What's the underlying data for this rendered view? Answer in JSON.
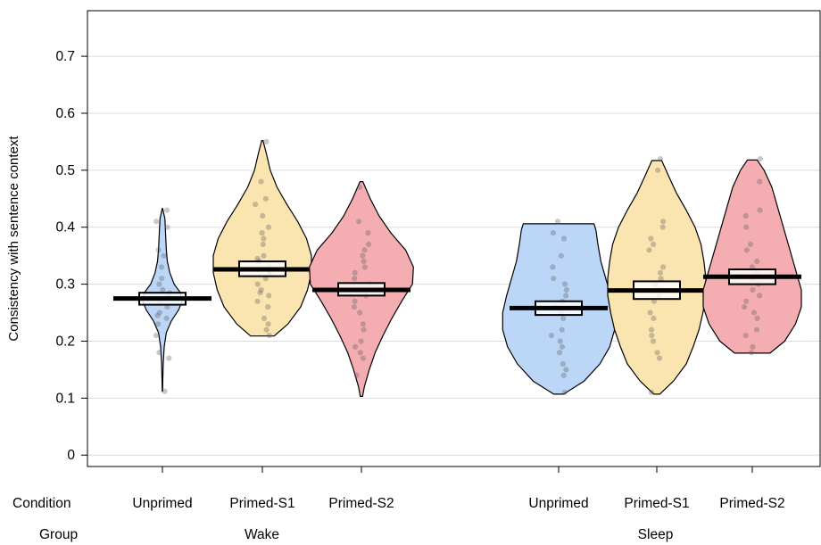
{
  "chart_data": {
    "type": "violin",
    "ylabel": "Consistency with sentence context",
    "ylim": [
      -0.02,
      0.78
    ],
    "yticks": [
      "0",
      "0.1",
      "0.2",
      "0.3",
      "0.4",
      "0.5",
      "0.6",
      "0.7"
    ],
    "ytick_values": [
      0,
      0.1,
      0.2,
      0.3,
      0.4,
      0.5,
      0.6,
      0.7
    ],
    "grid": true,
    "row_labels": {
      "condition": "Condition",
      "group": "Group"
    },
    "groups": [
      {
        "name": "Wake",
        "conditions": [
          {
            "name": "Unprimed",
            "color": "#bcd6f7",
            "mean": 0.275,
            "ci": [
              0.264,
              0.285
            ],
            "min": 0.112,
            "max": 0.433,
            "profile": [
              [
                0.112,
                0.002
              ],
              [
                0.13,
                0.004
              ],
              [
                0.16,
                0.008
              ],
              [
                0.19,
                0.018
              ],
              [
                0.215,
                0.04
              ],
              [
                0.235,
                0.09
              ],
              [
                0.255,
                0.165
              ],
              [
                0.27,
                0.2
              ],
              [
                0.285,
                0.185
              ],
              [
                0.3,
                0.12
              ],
              [
                0.32,
                0.075
              ],
              [
                0.34,
                0.05
              ],
              [
                0.36,
                0.04
              ],
              [
                0.39,
                0.032
              ],
              [
                0.415,
                0.025
              ],
              [
                0.433,
                0.002
              ]
            ],
            "points": [
              0.112,
              0.17,
              0.18,
              0.21,
              0.23,
              0.24,
              0.245,
              0.25,
              0.26,
              0.27,
              0.275,
              0.28,
              0.285,
              0.29,
              0.3,
              0.31,
              0.33,
              0.35,
              0.36,
              0.4,
              0.41,
              0.43
            ]
          },
          {
            "name": "Primed-S1",
            "color": "#fae4b0",
            "mean": 0.326,
            "ci": [
              0.314,
              0.34
            ],
            "min": 0.209,
            "max": 0.552,
            "profile": [
              [
                0.209,
                0.12
              ],
              [
                0.23,
                0.26
              ],
              [
                0.26,
                0.39
              ],
              [
                0.29,
                0.46
              ],
              [
                0.32,
                0.5
              ],
              [
                0.35,
                0.5
              ],
              [
                0.38,
                0.45
              ],
              [
                0.41,
                0.36
              ],
              [
                0.44,
                0.25
              ],
              [
                0.47,
                0.15
              ],
              [
                0.5,
                0.08
              ],
              [
                0.53,
                0.04
              ],
              [
                0.552,
                0.006
              ]
            ],
            "points": [
              0.21,
              0.22,
              0.23,
              0.24,
              0.26,
              0.27,
              0.28,
              0.285,
              0.29,
              0.3,
              0.31,
              0.32,
              0.33,
              0.34,
              0.345,
              0.35,
              0.37,
              0.38,
              0.39,
              0.4,
              0.42,
              0.44,
              0.45,
              0.48,
              0.55
            ]
          },
          {
            "name": "Primed-S2",
            "color": "#f4aeb2",
            "mean": 0.29,
            "ci": [
              0.28,
              0.302
            ],
            "min": 0.103,
            "max": 0.48,
            "profile": [
              [
                0.103,
                0.012
              ],
              [
                0.12,
                0.03
              ],
              [
                0.15,
                0.08
              ],
              [
                0.18,
                0.14
              ],
              [
                0.21,
                0.22
              ],
              [
                0.24,
                0.31
              ],
              [
                0.27,
                0.41
              ],
              [
                0.3,
                0.52
              ],
              [
                0.33,
                0.53
              ],
              [
                0.36,
                0.45
              ],
              [
                0.39,
                0.3
              ],
              [
                0.42,
                0.18
              ],
              [
                0.45,
                0.09
              ],
              [
                0.48,
                0.015
              ]
            ],
            "points": [
              0.14,
              0.17,
              0.18,
              0.19,
              0.2,
              0.22,
              0.23,
              0.25,
              0.26,
              0.27,
              0.28,
              0.29,
              0.3,
              0.31,
              0.32,
              0.33,
              0.34,
              0.35,
              0.36,
              0.37,
              0.39,
              0.41,
              0.47
            ]
          }
        ]
      },
      {
        "name": "Sleep",
        "conditions": [
          {
            "name": "Unprimed",
            "color": "#bcd6f7",
            "mean": 0.258,
            "ci": [
              0.246,
              0.27
            ],
            "min": 0.107,
            "max": 0.406,
            "profile": [
              [
                0.107,
                0.05
              ],
              [
                0.13,
                0.26
              ],
              [
                0.16,
                0.42
              ],
              [
                0.19,
                0.52
              ],
              [
                0.22,
                0.57
              ],
              [
                0.25,
                0.57
              ],
              [
                0.28,
                0.53
              ],
              [
                0.31,
                0.48
              ],
              [
                0.34,
                0.43
              ],
              [
                0.37,
                0.4
              ],
              [
                0.395,
                0.38
              ],
              [
                0.406,
                0.36
              ]
            ],
            "points": [
              0.11,
              0.14,
              0.15,
              0.16,
              0.18,
              0.19,
              0.2,
              0.21,
              0.22,
              0.24,
              0.25,
              0.26,
              0.27,
              0.28,
              0.29,
              0.3,
              0.31,
              0.33,
              0.35,
              0.38,
              0.39,
              0.41
            ]
          },
          {
            "name": "Primed-S1",
            "color": "#fae4b0",
            "mean": 0.289,
            "ci": [
              0.274,
              0.305
            ],
            "min": 0.107,
            "max": 0.517,
            "profile": [
              [
                0.107,
                0.03
              ],
              [
                0.13,
                0.17
              ],
              [
                0.16,
                0.3
              ],
              [
                0.19,
                0.37
              ],
              [
                0.22,
                0.43
              ],
              [
                0.25,
                0.47
              ],
              [
                0.28,
                0.5
              ],
              [
                0.31,
                0.5
              ],
              [
                0.34,
                0.48
              ],
              [
                0.37,
                0.45
              ],
              [
                0.4,
                0.39
              ],
              [
                0.43,
                0.3
              ],
              [
                0.46,
                0.2
              ],
              [
                0.49,
                0.12
              ],
              [
                0.517,
                0.05
              ]
            ],
            "points": [
              0.11,
              0.17,
              0.18,
              0.2,
              0.21,
              0.22,
              0.24,
              0.25,
              0.27,
              0.28,
              0.29,
              0.3,
              0.31,
              0.32,
              0.33,
              0.36,
              0.37,
              0.38,
              0.4,
              0.41,
              0.5,
              0.52
            ]
          },
          {
            "name": "Primed-S2",
            "color": "#f4aeb2",
            "mean": 0.313,
            "ci": [
              0.3,
              0.326
            ],
            "min": 0.179,
            "max": 0.518,
            "profile": [
              [
                0.179,
                0.18
              ],
              [
                0.2,
                0.33
              ],
              [
                0.23,
                0.44
              ],
              [
                0.26,
                0.5
              ],
              [
                0.29,
                0.5
              ],
              [
                0.32,
                0.45
              ],
              [
                0.35,
                0.4
              ],
              [
                0.38,
                0.35
              ],
              [
                0.41,
                0.3
              ],
              [
                0.44,
                0.25
              ],
              [
                0.47,
                0.2
              ],
              [
                0.5,
                0.12
              ],
              [
                0.518,
                0.05
              ]
            ],
            "points": [
              0.18,
              0.19,
              0.21,
              0.22,
              0.24,
              0.25,
              0.26,
              0.27,
              0.28,
              0.29,
              0.3,
              0.31,
              0.32,
              0.33,
              0.34,
              0.36,
              0.37,
              0.4,
              0.42,
              0.43,
              0.48,
              0.52
            ]
          }
        ]
      }
    ]
  }
}
